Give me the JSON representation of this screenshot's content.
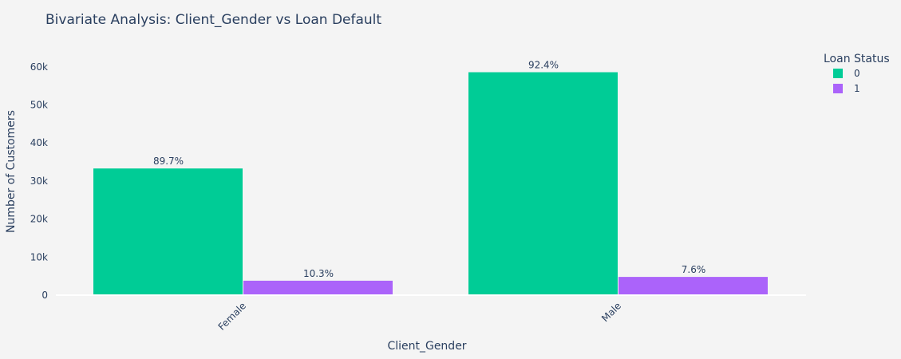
{
  "chart_data": {
    "type": "bar",
    "title": "Bivariate Analysis: Client_Gender vs Loan Default",
    "xlabel": "Client_Gender",
    "ylabel": "Number of Customers",
    "categories": [
      "Female",
      "Male"
    ],
    "ylim": [
      0,
      65000
    ],
    "yticks": [
      0,
      10000,
      20000,
      30000,
      40000,
      50000,
      60000
    ],
    "ytick_labels": [
      "0",
      "10k",
      "20k",
      "30k",
      "40k",
      "50k",
      "60k"
    ],
    "legend_title": "Loan Status",
    "legend_position": "top-right",
    "grid": false,
    "series": [
      {
        "name": "0",
        "color": "#00cc96",
        "values": [
          33300,
          58600
        ],
        "labels": [
          "89.7%",
          "92.4%"
        ]
      },
      {
        "name": "1",
        "color": "#ab63fa",
        "values": [
          3800,
          4800
        ],
        "labels": [
          "10.3%",
          "7.6%"
        ]
      }
    ]
  }
}
